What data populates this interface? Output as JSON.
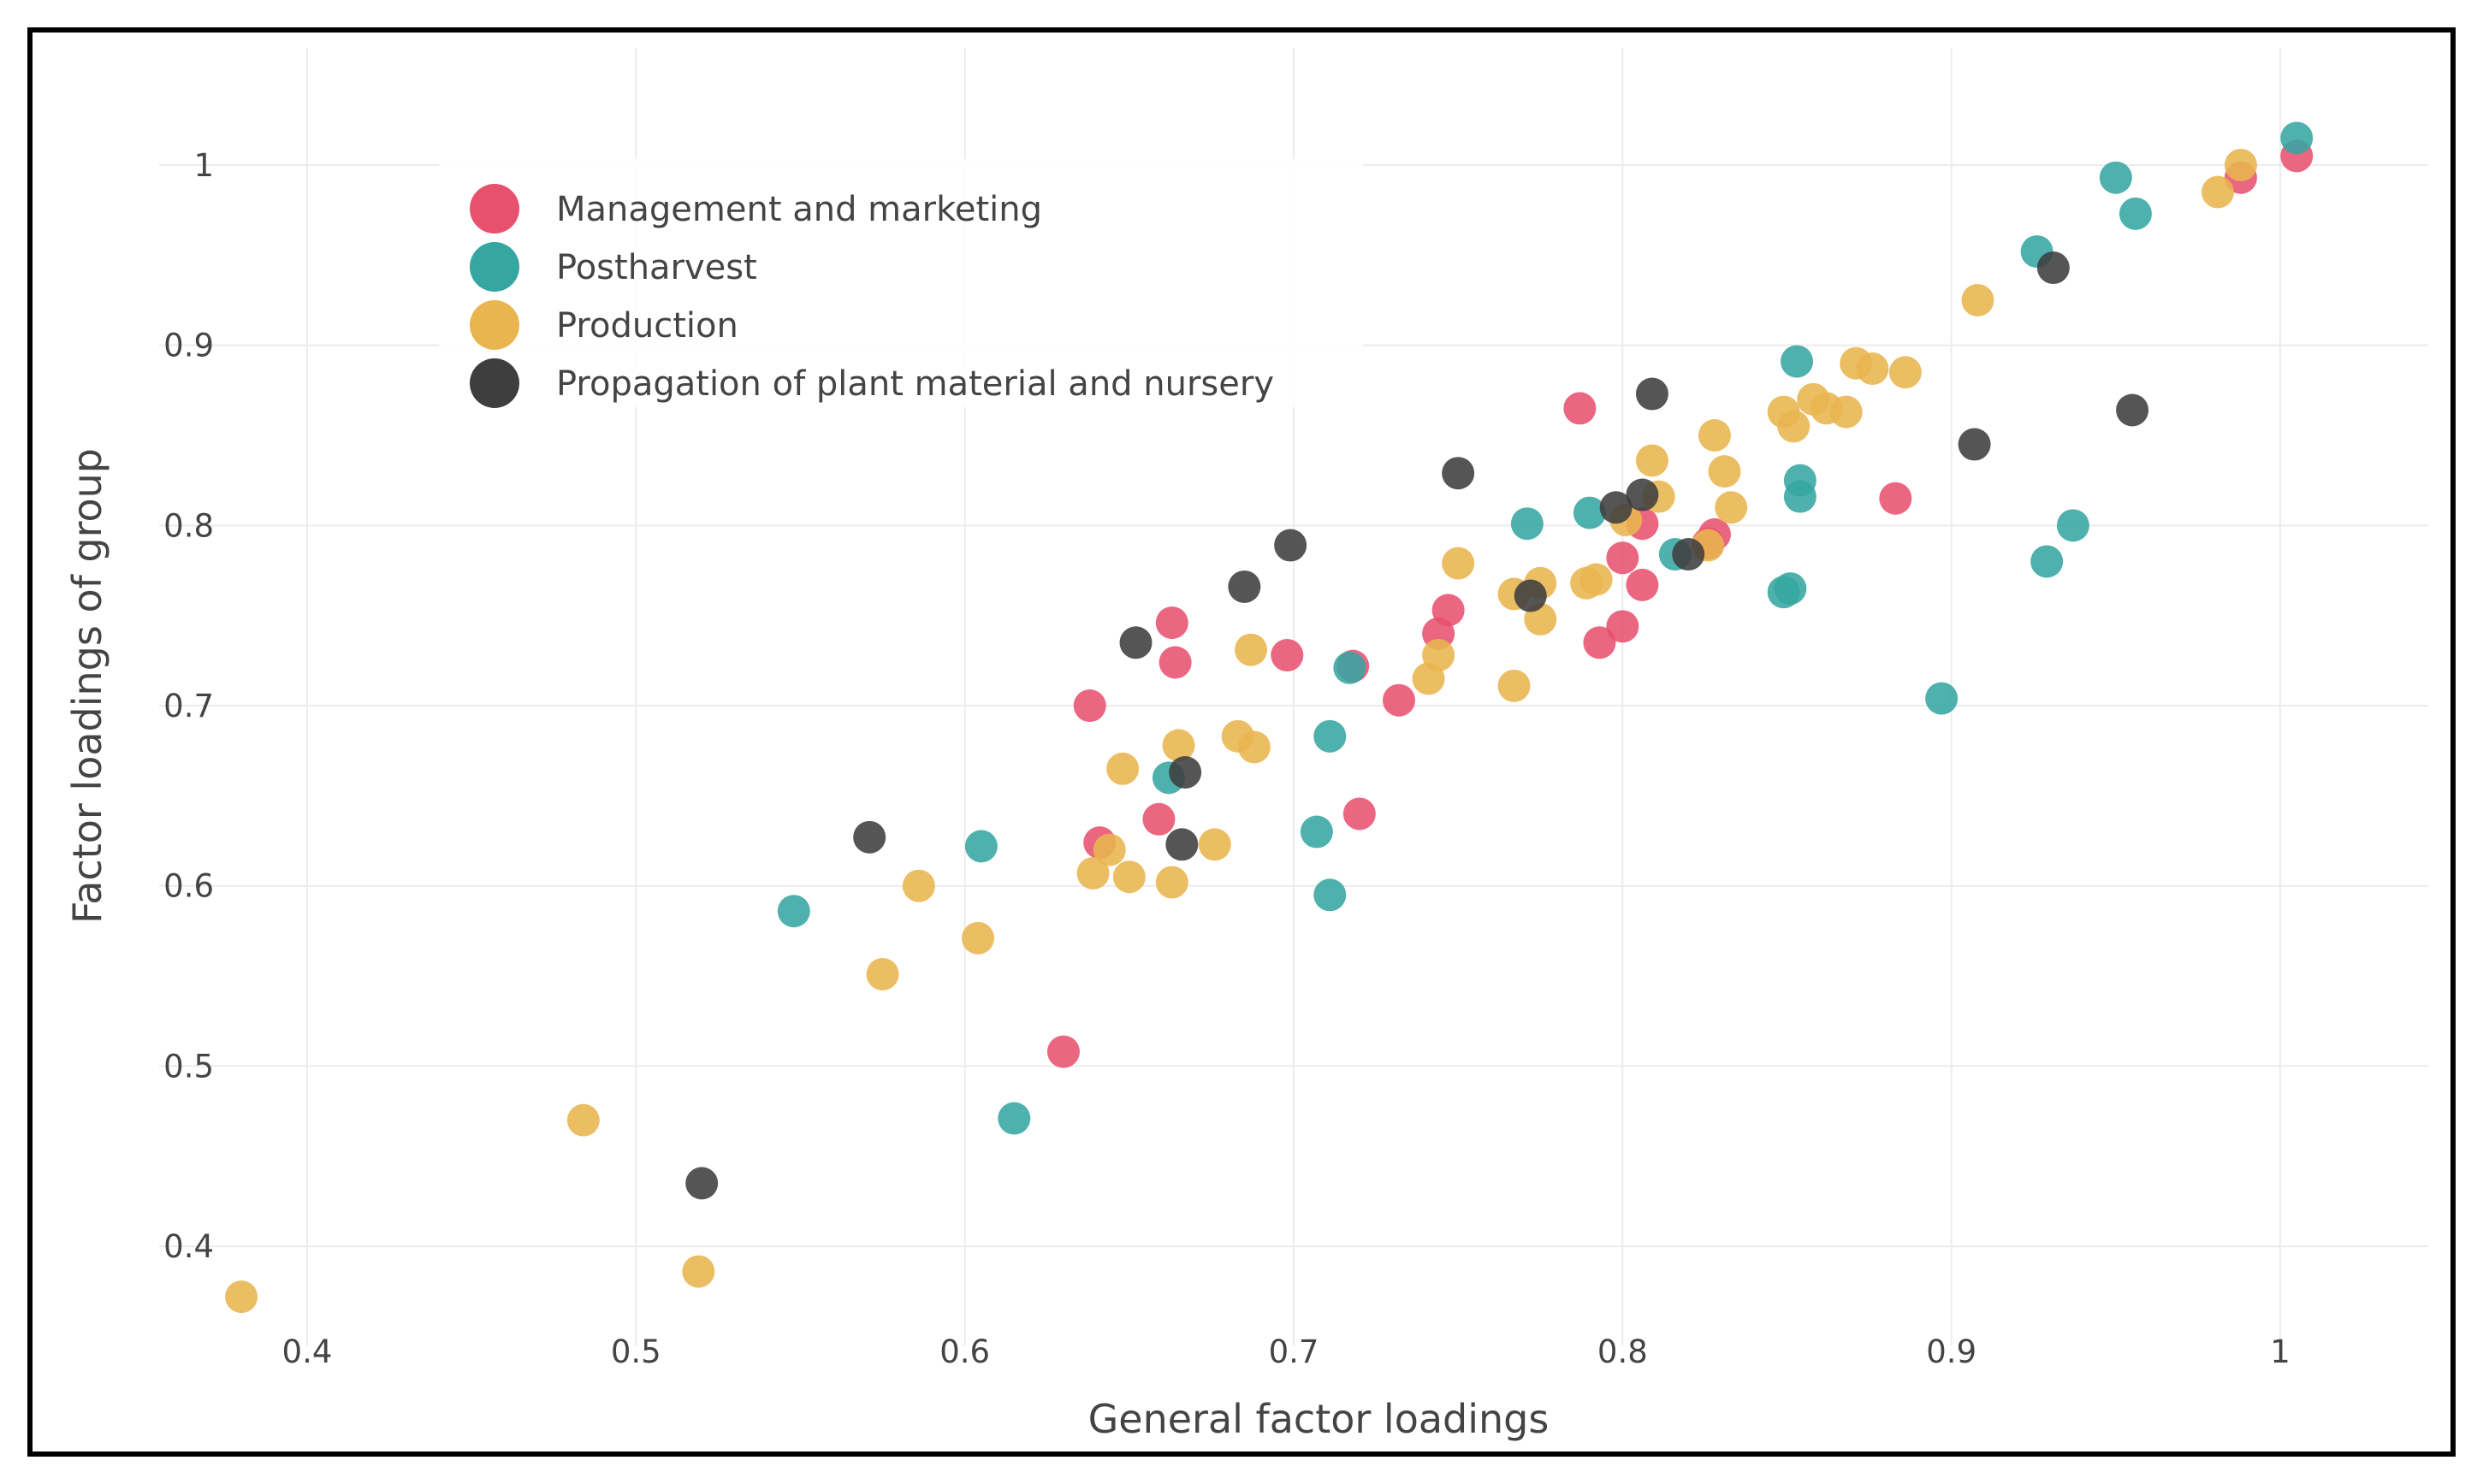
{
  "chart_data": {
    "type": "scatter",
    "title": "",
    "xlabel": "General factor loadings",
    "ylabel": "Factor loadings of group",
    "xlim": [
      0.355,
      1.045
    ],
    "ylim": [
      0.345,
      1.065
    ],
    "xticks": [
      0.4,
      0.5,
      0.6,
      0.7,
      0.8,
      0.9,
      1
    ],
    "yticks": [
      0.4,
      0.5,
      0.6,
      0.7,
      0.8,
      0.9,
      1
    ],
    "xtick_labels": [
      "0.4",
      "0.5",
      "0.6",
      "0.7",
      "0.8",
      "0.9",
      "1"
    ],
    "ytick_labels": [
      "0.4",
      "0.5",
      "0.6",
      "0.7",
      "0.8",
      "0.9",
      "1"
    ],
    "grid": true,
    "legend_position": "top-left",
    "series": [
      {
        "name": "Management and marketing",
        "color": "#e8516e",
        "points": [
          [
            1.005,
            1.005
          ],
          [
            0.988,
            0.993
          ],
          [
            0.787,
            0.865
          ],
          [
            0.806,
            0.801
          ],
          [
            0.883,
            0.815
          ],
          [
            0.828,
            0.795
          ],
          [
            0.826,
            0.79
          ],
          [
            0.8,
            0.782
          ],
          [
            0.806,
            0.767
          ],
          [
            0.8,
            0.744
          ],
          [
            0.793,
            0.735
          ],
          [
            0.747,
            0.753
          ],
          [
            0.744,
            0.74
          ],
          [
            0.663,
            0.746
          ],
          [
            0.664,
            0.724
          ],
          [
            0.698,
            0.728
          ],
          [
            0.718,
            0.722
          ],
          [
            0.732,
            0.703
          ],
          [
            0.638,
            0.7
          ],
          [
            0.659,
            0.637
          ],
          [
            0.641,
            0.624
          ],
          [
            0.72,
            0.64
          ],
          [
            0.63,
            0.508
          ]
        ]
      },
      {
        "name": "Postharvest",
        "color": "#36a6a2",
        "points": [
          [
            1.005,
            1.015
          ],
          [
            0.95,
            0.993
          ],
          [
            0.956,
            0.973
          ],
          [
            0.926,
            0.952
          ],
          [
            0.853,
            0.891
          ],
          [
            0.854,
            0.825
          ],
          [
            0.854,
            0.816
          ],
          [
            0.79,
            0.807
          ],
          [
            0.771,
            0.801
          ],
          [
            0.937,
            0.8
          ],
          [
            0.929,
            0.78
          ],
          [
            0.816,
            0.784
          ],
          [
            0.851,
            0.765
          ],
          [
            0.849,
            0.763
          ],
          [
            0.717,
            0.721
          ],
          [
            0.711,
            0.683
          ],
          [
            0.897,
            0.704
          ],
          [
            0.662,
            0.66
          ],
          [
            0.707,
            0.63
          ],
          [
            0.711,
            0.595
          ],
          [
            0.605,
            0.622
          ],
          [
            0.548,
            0.586
          ],
          [
            0.615,
            0.471
          ]
        ]
      },
      {
        "name": "Production",
        "color": "#e9b54e",
        "points": [
          [
            0.988,
            1.0
          ],
          [
            0.981,
            0.985
          ],
          [
            0.908,
            0.925
          ],
          [
            0.871,
            0.89
          ],
          [
            0.876,
            0.887
          ],
          [
            0.886,
            0.885
          ],
          [
            0.858,
            0.87
          ],
          [
            0.862,
            0.865
          ],
          [
            0.868,
            0.863
          ],
          [
            0.849,
            0.863
          ],
          [
            0.852,
            0.855
          ],
          [
            0.828,
            0.85
          ],
          [
            0.809,
            0.836
          ],
          [
            0.831,
            0.83
          ],
          [
            0.811,
            0.816
          ],
          [
            0.833,
            0.81
          ],
          [
            0.801,
            0.803
          ],
          [
            0.826,
            0.789
          ],
          [
            0.75,
            0.779
          ],
          [
            0.775,
            0.768
          ],
          [
            0.792,
            0.77
          ],
          [
            0.789,
            0.768
          ],
          [
            0.767,
            0.762
          ],
          [
            0.775,
            0.748
          ],
          [
            0.744,
            0.728
          ],
          [
            0.741,
            0.715
          ],
          [
            0.767,
            0.711
          ],
          [
            0.687,
            0.731
          ],
          [
            0.683,
            0.683
          ],
          [
            0.688,
            0.677
          ],
          [
            0.665,
            0.678
          ],
          [
            0.648,
            0.665
          ],
          [
            0.676,
            0.623
          ],
          [
            0.644,
            0.62
          ],
          [
            0.65,
            0.605
          ],
          [
            0.639,
            0.607
          ],
          [
            0.663,
            0.602
          ],
          [
            0.586,
            0.6
          ],
          [
            0.604,
            0.571
          ],
          [
            0.575,
            0.551
          ],
          [
            0.484,
            0.47
          ],
          [
            0.519,
            0.386
          ],
          [
            0.38,
            0.372
          ]
        ]
      },
      {
        "name": "Propagation of plant material and nursery",
        "color": "#3e3e3e",
        "points": [
          [
            0.931,
            0.943
          ],
          [
            0.809,
            0.873
          ],
          [
            0.955,
            0.864
          ],
          [
            0.907,
            0.845
          ],
          [
            0.75,
            0.829
          ],
          [
            0.806,
            0.817
          ],
          [
            0.798,
            0.81
          ],
          [
            0.699,
            0.789
          ],
          [
            0.82,
            0.784
          ],
          [
            0.685,
            0.766
          ],
          [
            0.772,
            0.761
          ],
          [
            0.652,
            0.735
          ],
          [
            0.667,
            0.663
          ],
          [
            0.666,
            0.623
          ],
          [
            0.571,
            0.627
          ],
          [
            0.52,
            0.435
          ]
        ]
      }
    ]
  }
}
